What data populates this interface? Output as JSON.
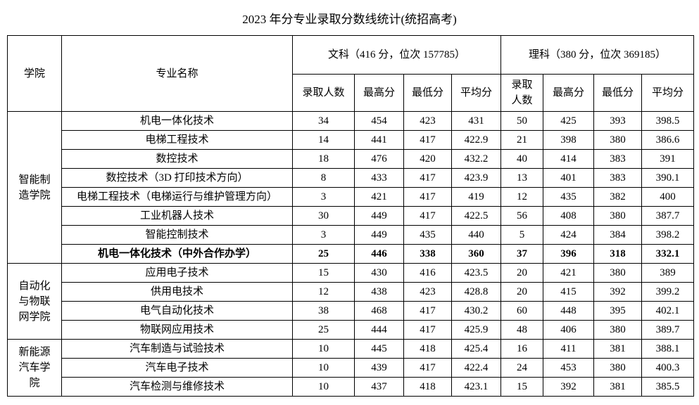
{
  "header": {
    "title": "2023 年分专业录取分数线统计(统招高考)",
    "college": "学院",
    "major": "专业名称",
    "groups": [
      {
        "label": "文科（416 分，位次 157785）",
        "columns": [
          "录取人数",
          "最高分",
          "最低分",
          "平均分"
        ]
      },
      {
        "label": "理科（380 分，位次 369185）",
        "columns": [
          "录取人数",
          "最高分",
          "最低分",
          "平均分"
        ]
      }
    ]
  },
  "colleges": [
    {
      "name": "智能制造学院",
      "rows": [
        {
          "major": "机电一体化技术",
          "values": [
            "34",
            "454",
            "423",
            "431",
            "50",
            "425",
            "393",
            "398.5"
          ]
        },
        {
          "major": "电梯工程技术",
          "values": [
            "14",
            "441",
            "417",
            "422.9",
            "21",
            "398",
            "380",
            "386.6"
          ]
        },
        {
          "major": "数控技术",
          "values": [
            "18",
            "476",
            "420",
            "432.2",
            "40",
            "414",
            "383",
            "391"
          ]
        },
        {
          "major": "数控技术（3D 打印技术方向）",
          "values": [
            "8",
            "433",
            "417",
            "423.9",
            "13",
            "401",
            "383",
            "390.1"
          ]
        },
        {
          "major": "电梯工程技术（电梯运行与维护管理方向）",
          "values": [
            "3",
            "421",
            "417",
            "419",
            "12",
            "435",
            "382",
            "400"
          ]
        },
        {
          "major": "工业机器人技术",
          "values": [
            "30",
            "449",
            "417",
            "422.5",
            "56",
            "408",
            "380",
            "387.7"
          ]
        },
        {
          "major": "智能控制技术",
          "values": [
            "3",
            "449",
            "435",
            "440",
            "5",
            "424",
            "384",
            "398.2"
          ]
        },
        {
          "major": "机电一体化技术（中外合作办学）",
          "values": [
            "25",
            "446",
            "338",
            "360",
            "37",
            "396",
            "318",
            "332.1"
          ]
        }
      ]
    },
    {
      "name": "自动化与物联网学院",
      "rows": [
        {
          "major": "应用电子技术",
          "values": [
            "15",
            "430",
            "416",
            "423.5",
            "20",
            "421",
            "380",
            "389"
          ]
        },
        {
          "major": "供用电技术",
          "values": [
            "12",
            "438",
            "423",
            "428.8",
            "20",
            "415",
            "392",
            "399.2"
          ]
        },
        {
          "major": "电气自动化技术",
          "values": [
            "38",
            "468",
            "417",
            "430.2",
            "60",
            "448",
            "395",
            "402.1"
          ]
        },
        {
          "major": "物联网应用技术",
          "values": [
            "25",
            "444",
            "417",
            "425.9",
            "48",
            "406",
            "380",
            "389.7"
          ]
        }
      ]
    },
    {
      "name": "新能源汽车学院",
      "rows": [
        {
          "major": "汽车制造与试验技术",
          "values": [
            "10",
            "445",
            "418",
            "425.4",
            "16",
            "411",
            "381",
            "388.1"
          ]
        },
        {
          "major": "汽车电子技术",
          "values": [
            "10",
            "439",
            "417",
            "422.4",
            "24",
            "453",
            "380",
            "400.3"
          ]
        },
        {
          "major": "汽车检测与维修技术",
          "values": [
            "10",
            "437",
            "418",
            "423.1",
            "15",
            "392",
            "381",
            "385.5"
          ]
        }
      ]
    }
  ]
}
